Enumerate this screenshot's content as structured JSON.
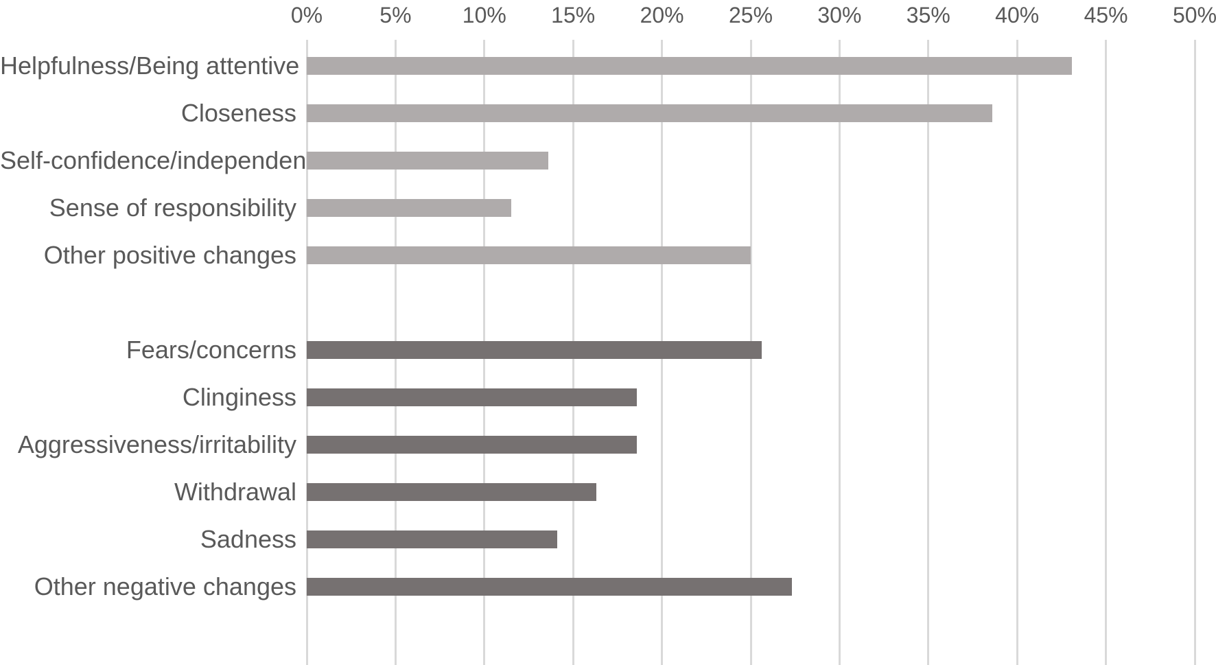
{
  "chart_data": {
    "type": "bar",
    "orientation": "horizontal",
    "title": "",
    "unit": "%",
    "grid": true,
    "legend": "none",
    "x_axis": {
      "position": "top",
      "min": 0,
      "max": 50,
      "tick_values": [
        0,
        5,
        10,
        15,
        20,
        25,
        30,
        35,
        40,
        45,
        50
      ],
      "tick_labels": [
        "0%",
        "5%",
        "10%",
        "15%",
        "20%",
        "25%",
        "30%",
        "35%",
        "40%",
        "45%",
        "50%"
      ]
    },
    "series": [
      {
        "name": "light-gray-bars",
        "color": "#afabab",
        "categories": [
          "Helpfulness/Being attentive",
          "Closeness",
          "Self-confidence/independence",
          "Sense of responsibility",
          "Other positive changes"
        ],
        "values": [
          43.1,
          38.6,
          13.6,
          11.5,
          25.0
        ]
      },
      {
        "name": "dark-gray-bars",
        "color": "#767171",
        "categories": [
          "Fears/concerns",
          "Clinginess",
          "Aggressiveness/irritability",
          "Withdrawal",
          "Sadness",
          "Other negative changes"
        ],
        "values": [
          25.6,
          18.6,
          18.6,
          16.3,
          14.1,
          27.3
        ]
      }
    ],
    "colors": {
      "gridline": "#d9d9d9",
      "axis_text": "#595959",
      "category_text": "#595959",
      "background": "#ffffff"
    }
  }
}
